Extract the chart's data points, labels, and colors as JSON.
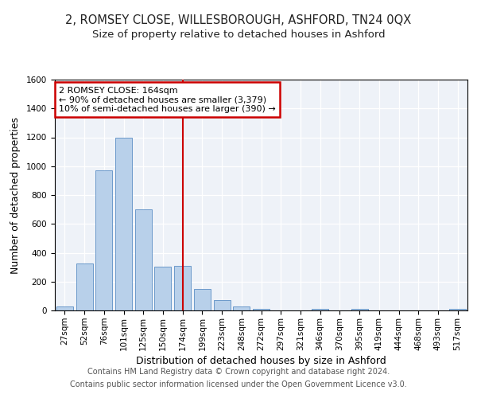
{
  "title1": "2, ROMSEY CLOSE, WILLESBOROUGH, ASHFORD, TN24 0QX",
  "title2": "Size of property relative to detached houses in Ashford",
  "xlabel": "Distribution of detached houses by size in Ashford",
  "ylabel": "Number of detached properties",
  "bar_labels": [
    "27sqm",
    "52sqm",
    "76sqm",
    "101sqm",
    "125sqm",
    "150sqm",
    "174sqm",
    "199sqm",
    "223sqm",
    "248sqm",
    "272sqm",
    "297sqm",
    "321sqm",
    "346sqm",
    "370sqm",
    "395sqm",
    "419sqm",
    "444sqm",
    "468sqm",
    "493sqm",
    "517sqm"
  ],
  "bar_values": [
    25,
    325,
    970,
    1195,
    700,
    305,
    310,
    150,
    70,
    30,
    10,
    0,
    0,
    12,
    0,
    12,
    0,
    0,
    0,
    0,
    10
  ],
  "bar_color": "#b8d0ea",
  "bar_edge_color": "#5b8ec4",
  "vline_x_index": 6,
  "vline_color": "#cc0000",
  "annotation_line1": "2 ROMSEY CLOSE: 164sqm",
  "annotation_line2": "← 90% of detached houses are smaller (3,379)",
  "annotation_line3": "10% of semi-detached houses are larger (390) →",
  "annotation_box_color": "#cc0000",
  "ylim": [
    0,
    1600
  ],
  "yticks": [
    0,
    200,
    400,
    600,
    800,
    1000,
    1200,
    1400,
    1600
  ],
  "footnote1": "Contains HM Land Registry data © Crown copyright and database right 2024.",
  "footnote2": "Contains public sector information licensed under the Open Government Licence v3.0.",
  "bg_color": "#eef2f8",
  "fig_bg_color": "#ffffff",
  "title_fontsize": 10.5,
  "subtitle_fontsize": 9.5,
  "axis_label_fontsize": 9,
  "tick_fontsize": 7.5,
  "annotation_fontsize": 8,
  "footnote_fontsize": 7
}
